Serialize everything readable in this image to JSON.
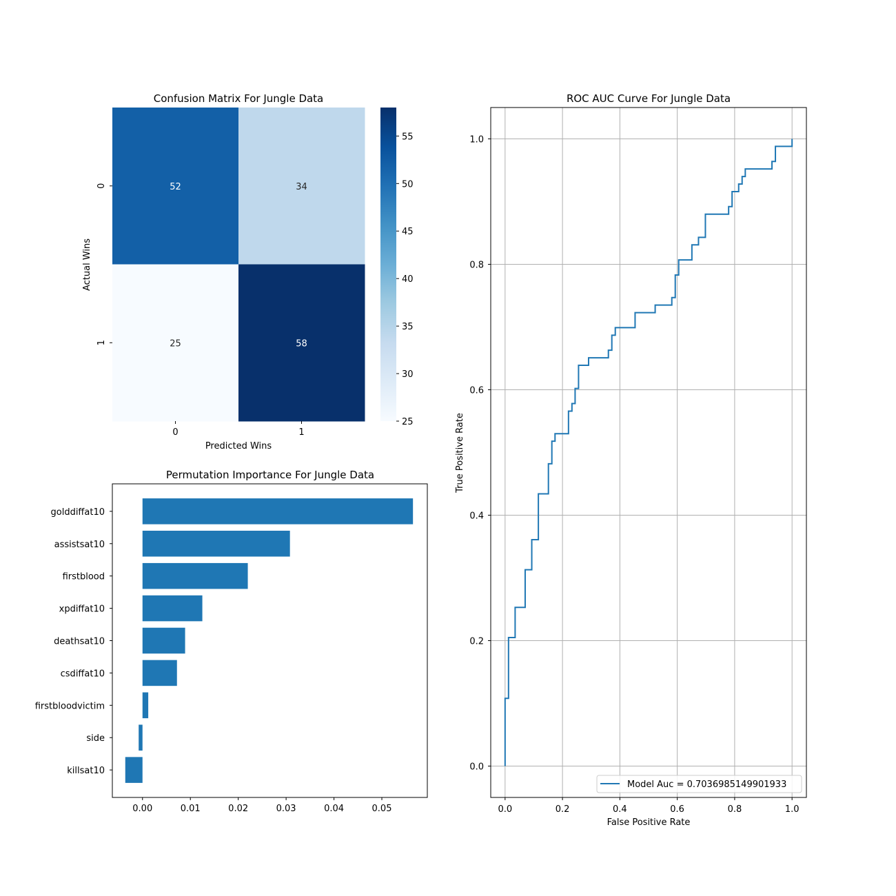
{
  "chart_data": [
    {
      "type": "heatmap",
      "title": "Confusion Matrix For Jungle Data",
      "xlabel": "Predicted Wins",
      "ylabel": "Actual Wins",
      "x_categories": [
        "0",
        "1"
      ],
      "y_categories": [
        "0",
        "1"
      ],
      "values": [
        [
          52,
          34
        ],
        [
          25,
          58
        ]
      ],
      "colormap": "Blues",
      "colorbar": {
        "vmin": 25,
        "vmax": 58,
        "ticks": [
          25,
          30,
          35,
          40,
          45,
          50,
          55
        ]
      }
    },
    {
      "type": "bar",
      "orientation": "horizontal",
      "title": "Permutation Importance For Jungle Data",
      "categories": [
        "golddiffat10",
        "assistsat10",
        "firstblood",
        "xpdiffat10",
        "deathsat10",
        "csdiffat10",
        "firstbloodvictim",
        "side",
        "killsat10"
      ],
      "values": [
        0.0565,
        0.0308,
        0.022,
        0.0125,
        0.0089,
        0.0072,
        0.0012,
        -0.0008,
        -0.0036
      ],
      "xlim": [
        -0.0063,
        0.0595
      ],
      "xticks": [
        0.0,
        0.01,
        0.02,
        0.03,
        0.04,
        0.05
      ],
      "color": "#1f77b4"
    },
    {
      "type": "line",
      "title": "ROC AUC Curve For Jungle Data",
      "xlabel": "False Positive Rate",
      "ylabel": "True Positive Rate",
      "xlim": [
        -0.05,
        1.05
      ],
      "ylim": [
        -0.05,
        1.05
      ],
      "xticks": [
        0.0,
        0.2,
        0.4,
        0.6,
        0.8,
        1.0
      ],
      "yticks": [
        0.0,
        0.2,
        0.4,
        0.6,
        0.8,
        1.0
      ],
      "grid": true,
      "legend_position": "lower-right",
      "series": [
        {
          "name": "Model Auc = 0.7036985149901933",
          "color": "#1f77b4",
          "x": [
            0.0,
            0.0,
            0.012,
            0.012,
            0.035,
            0.035,
            0.07,
            0.07,
            0.093,
            0.093,
            0.116,
            0.116,
            0.151,
            0.151,
            0.163,
            0.163,
            0.174,
            0.174,
            0.221,
            0.221,
            0.233,
            0.233,
            0.244,
            0.244,
            0.256,
            0.256,
            0.291,
            0.291,
            0.36,
            0.36,
            0.372,
            0.372,
            0.384,
            0.384,
            0.453,
            0.453,
            0.523,
            0.523,
            0.581,
            0.581,
            0.593,
            0.593,
            0.605,
            0.605,
            0.651,
            0.651,
            0.674,
            0.674,
            0.698,
            0.698,
            0.779,
            0.779,
            0.791,
            0.791,
            0.814,
            0.814,
            0.826,
            0.826,
            0.837,
            0.837,
            0.93,
            0.93,
            0.942,
            0.942,
            1.0,
            1.0
          ],
          "y": [
            0.0,
            0.108,
            0.108,
            0.205,
            0.205,
            0.253,
            0.253,
            0.313,
            0.313,
            0.361,
            0.361,
            0.434,
            0.434,
            0.482,
            0.482,
            0.518,
            0.518,
            0.53,
            0.53,
            0.566,
            0.566,
            0.578,
            0.578,
            0.602,
            0.602,
            0.639,
            0.639,
            0.651,
            0.651,
            0.663,
            0.663,
            0.687,
            0.687,
            0.699,
            0.699,
            0.723,
            0.723,
            0.735,
            0.735,
            0.747,
            0.747,
            0.783,
            0.783,
            0.807,
            0.807,
            0.831,
            0.831,
            0.843,
            0.843,
            0.88,
            0.88,
            0.892,
            0.892,
            0.916,
            0.916,
            0.928,
            0.928,
            0.94,
            0.94,
            0.952,
            0.952,
            0.964,
            0.964,
            0.988,
            0.988,
            1.0
          ]
        }
      ]
    }
  ]
}
